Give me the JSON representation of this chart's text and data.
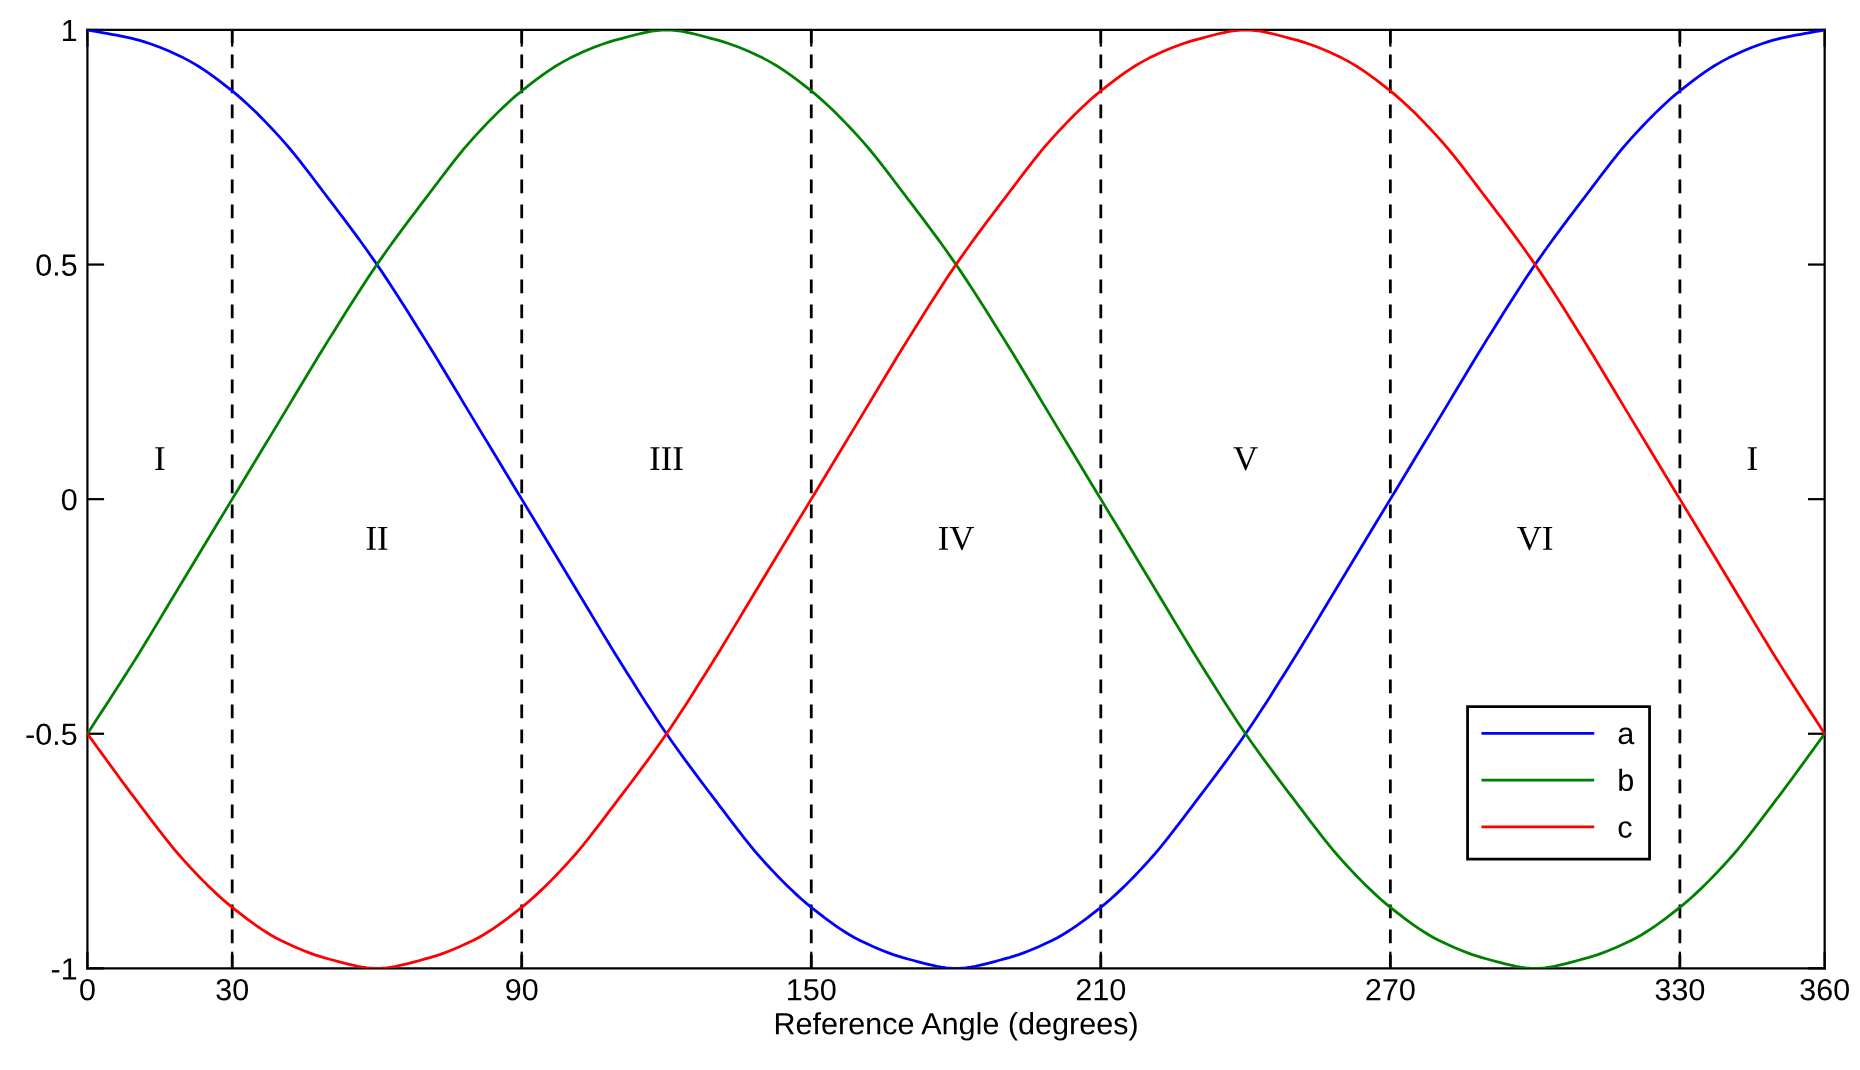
{
  "chart_data": {
    "type": "line",
    "xlabel": "Reference Angle (degrees)",
    "x": [
      0,
      10,
      20,
      30,
      40,
      50,
      60,
      70,
      80,
      90,
      100,
      110,
      120,
      130,
      140,
      150,
      160,
      170,
      180,
      190,
      200,
      210,
      220,
      230,
      240,
      250,
      260,
      270,
      280,
      290,
      300,
      310,
      320,
      330,
      340,
      350,
      360
    ],
    "series": [
      {
        "name": "a",
        "color": "#0000ff",
        "values": [
          1,
          0.98,
          0.94,
          0.87,
          0.77,
          0.64,
          0.5,
          0.34,
          0.17,
          0,
          -0.17,
          -0.34,
          -0.5,
          -0.64,
          -0.77,
          -0.87,
          -0.94,
          -0.98,
          -1,
          -0.98,
          -0.94,
          -0.87,
          -0.77,
          -0.64,
          -0.5,
          -0.34,
          -0.17,
          0,
          0.17,
          0.34,
          0.5,
          0.64,
          0.77,
          0.87,
          0.94,
          0.98,
          1
        ]
      },
      {
        "name": "b",
        "color": "#008000",
        "values": [
          -0.5,
          -0.34,
          -0.17,
          0,
          0.17,
          0.34,
          0.5,
          0.64,
          0.77,
          0.87,
          0.94,
          0.98,
          1,
          0.98,
          0.94,
          0.87,
          0.77,
          0.64,
          0.5,
          0.34,
          0.17,
          0,
          -0.17,
          -0.34,
          -0.5,
          -0.64,
          -0.77,
          -0.87,
          -0.94,
          -0.98,
          -1,
          -0.98,
          -0.94,
          -0.87,
          -0.77,
          -0.64,
          -0.5
        ]
      },
      {
        "name": "c",
        "color": "#ff0000",
        "values": [
          -0.5,
          -0.64,
          -0.77,
          -0.87,
          -0.94,
          -0.98,
          -1,
          -0.98,
          -0.94,
          -0.87,
          -0.77,
          -0.64,
          -0.5,
          -0.34,
          -0.17,
          0,
          0.17,
          0.34,
          0.5,
          0.64,
          0.77,
          0.87,
          0.94,
          0.98,
          1,
          0.98,
          0.94,
          0.87,
          0.77,
          0.64,
          0.5,
          0.34,
          0.17,
          0,
          -0.17,
          -0.34,
          -0.5
        ]
      }
    ],
    "xlim": [
      0,
      360
    ],
    "xticks": [
      0,
      30,
      90,
      150,
      210,
      270,
      330,
      360
    ],
    "ylim": [
      -1,
      1
    ],
    "yticks": [
      -1,
      -0.5,
      0,
      0.5,
      1
    ],
    "ref_lines": [
      {
        "axis": "x",
        "value": 30,
        "color": "#000000",
        "line_style": "dashed"
      },
      {
        "axis": "x",
        "value": 90,
        "color": "#000000",
        "line_style": "dashed"
      },
      {
        "axis": "x",
        "value": 150,
        "color": "#000000",
        "line_style": "dashed"
      },
      {
        "axis": "x",
        "value": 210,
        "color": "#000000",
        "line_style": "dashed"
      },
      {
        "axis": "x",
        "value": 270,
        "color": "#000000",
        "line_style": "dashed"
      },
      {
        "axis": "x",
        "value": 330,
        "color": "#000000",
        "line_style": "dashed"
      }
    ],
    "annotations": [
      "I",
      "II",
      "III",
      "IV",
      "V",
      "VI",
      "I"
    ],
    "grid": false,
    "legend": "bottom right",
    "marker": "none",
    "line_style": "solid"
  }
}
